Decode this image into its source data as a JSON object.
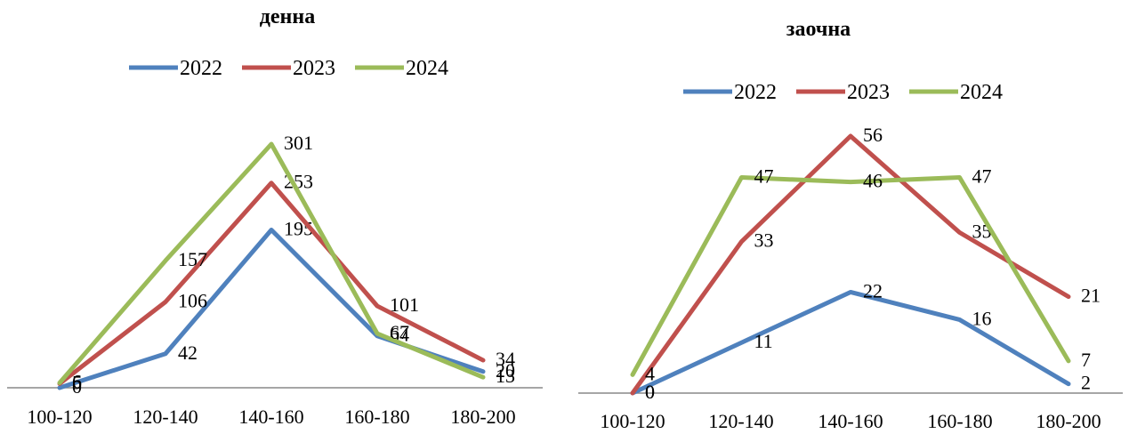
{
  "chart_data": [
    {
      "type": "line",
      "title": "денна",
      "categories": [
        "100-120",
        "120-140",
        "140-160",
        "160-180",
        "180-200"
      ],
      "series": [
        {
          "name": "2022",
          "color": "#4F81BD",
          "values": [
            0,
            42,
            195,
            64,
            20
          ]
        },
        {
          "name": "2023",
          "color": "#C0504D",
          "values": [
            5,
            106,
            253,
            101,
            34
          ]
        },
        {
          "name": "2024",
          "color": "#9BBB59",
          "values": [
            6,
            157,
            301,
            67,
            13
          ]
        }
      ],
      "ylim": [
        0,
        340
      ],
      "grid": false,
      "legend_position": "top"
    },
    {
      "type": "line",
      "title": "заочна",
      "categories": [
        "100-120",
        "120-140",
        "140-160",
        "160-180",
        "180-200"
      ],
      "series": [
        {
          "name": "2022",
          "color": "#4F81BD",
          "values": [
            0,
            11,
            22,
            16,
            2
          ]
        },
        {
          "name": "2023",
          "color": "#C0504D",
          "values": [
            0,
            33,
            56,
            35,
            21
          ]
        },
        {
          "name": "2024",
          "color": "#9BBB59",
          "values": [
            4,
            47,
            46,
            47,
            7
          ]
        }
      ],
      "ylim": [
        0,
        60
      ],
      "grid": false,
      "legend_position": "top"
    }
  ]
}
